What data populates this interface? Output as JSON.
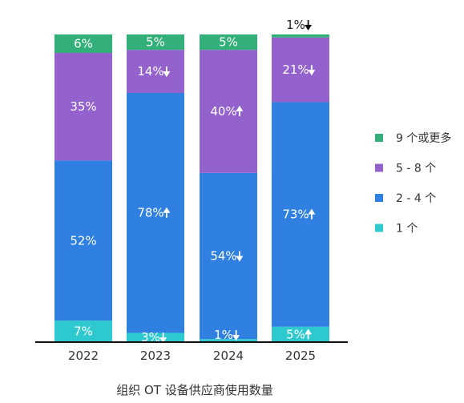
{
  "chart_data": {
    "type": "bar",
    "stacked": true,
    "categories": [
      "2022",
      "2023",
      "2024",
      "2025"
    ],
    "series": [
      {
        "name": "1 个",
        "color": "#2ec9cf",
        "values": [
          7,
          3,
          1,
          5
        ],
        "labels": [
          "7%",
          "3%",
          "1%",
          "5%"
        ],
        "trend": [
          "",
          "down",
          "down",
          "up"
        ]
      },
      {
        "name": "2 - 4 个",
        "color": "#2f80e0",
        "values": [
          52,
          78,
          54,
          73
        ],
        "labels": [
          "52%",
          "78%",
          "54%",
          "73%"
        ],
        "trend": [
          "",
          "up",
          "down",
          "up"
        ]
      },
      {
        "name": "5 - 8 个",
        "color": "#9362cc",
        "values": [
          35,
          14,
          40,
          21
        ],
        "labels": [
          "35%",
          "14%",
          "40%",
          "21%"
        ],
        "trend": [
          "",
          "down",
          "up",
          "down"
        ]
      },
      {
        "name": "9 个或更多",
        "color": "#33b07a",
        "values": [
          6,
          5,
          5,
          1
        ],
        "labels": [
          "6%",
          "5%",
          "5%",
          "1%"
        ],
        "trend": [
          "",
          "",
          "",
          "down"
        ]
      }
    ],
    "xlabel": "组织 OT 设备供应商使用数量",
    "ylim": [
      0,
      100
    ],
    "legend_position": "right"
  }
}
